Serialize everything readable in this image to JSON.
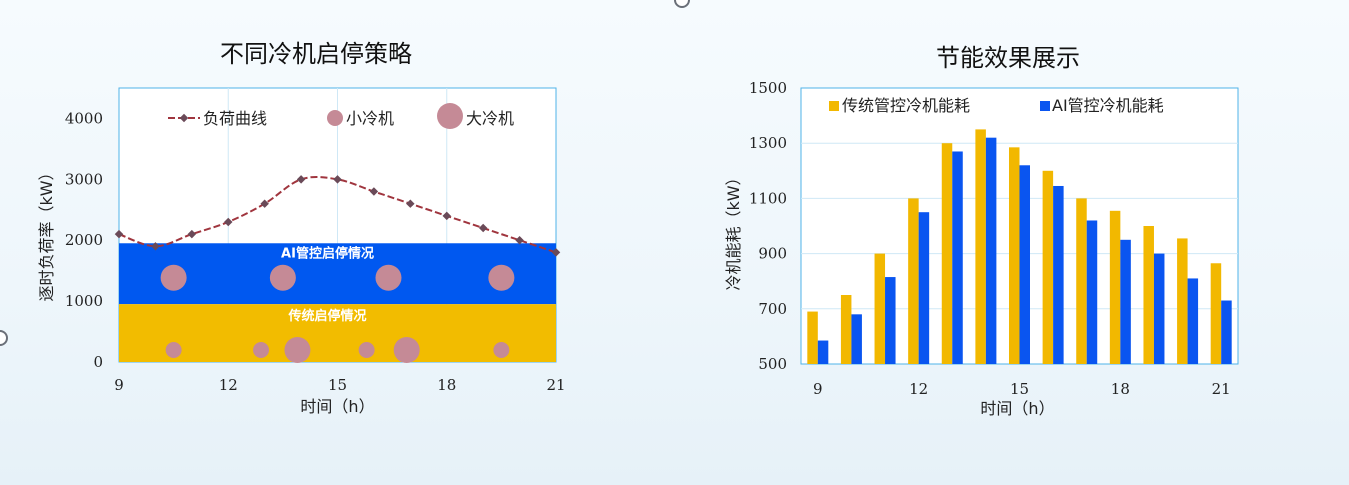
{
  "left_chart": {
    "title": "不同冷机启停策略",
    "xlabel": "时间（h）",
    "ylabel": "逐时负荷率（kW）",
    "legend": [
      "负荷曲线",
      "小冷机",
      "大冷机"
    ],
    "band_ai_label": "AI管控启停情况",
    "band_trad_label": "传统启停情况",
    "colors": {
      "load_line": "#a0353e",
      "marker": "#6a4a58",
      "chiller": "#c58a96",
      "ai_band": "#0058f0",
      "trad_band": "#f2bc00",
      "axis": "#4fb3e8"
    }
  },
  "right_chart": {
    "title": "节能效果展示",
    "xlabel": "时间（h）",
    "ylabel": "冷机能耗（kW）",
    "colors": {
      "traditional": "#f2b800",
      "ai": "#0a55f0",
      "axis": "#4fb3e8"
    }
  },
  "chart_data": [
    {
      "type": "line",
      "title": "不同冷机启停策略",
      "xlabel": "时间（h）",
      "ylabel": "逐时负荷率（kW）",
      "xlim": [
        9,
        21
      ],
      "ylim": [
        0,
        4500
      ],
      "xticks": [
        9,
        12,
        15,
        18,
        21
      ],
      "yticks": [
        0,
        1000,
        2000,
        3000,
        4000
      ],
      "legend_position": "top",
      "series": [
        {
          "name": "负荷曲线",
          "x": [
            9,
            10,
            11,
            12,
            13,
            14,
            15,
            16,
            17,
            18,
            19,
            20,
            21
          ],
          "y": [
            2100,
            1900,
            2100,
            2300,
            2600,
            3000,
            3000,
            2800,
            2600,
            2400,
            2200,
            2000,
            1800
          ]
        }
      ],
      "bands": [
        {
          "label": "AI管控启停情况",
          "y_range": [
            950,
            1950
          ],
          "chillers": [
            {
              "type": "大冷机",
              "x": 10.5
            },
            {
              "type": "大冷机",
              "x": 13.5
            },
            {
              "type": "大冷机",
              "x": 16.4
            },
            {
              "type": "大冷机",
              "x": 19.5
            }
          ]
        },
        {
          "label": "传统启停情况",
          "y_range": [
            0,
            950
          ],
          "chillers": [
            {
              "type": "小冷机",
              "x": 10.5
            },
            {
              "type": "小冷机",
              "x": 12.9
            },
            {
              "type": "大冷机",
              "x": 13.9
            },
            {
              "type": "小冷机",
              "x": 15.8
            },
            {
              "type": "大冷机",
              "x": 16.9
            },
            {
              "type": "小冷机",
              "x": 19.5
            }
          ]
        }
      ]
    },
    {
      "type": "bar",
      "title": "节能效果展示",
      "xlabel": "时间（h）",
      "ylabel": "冷机能耗（kW）",
      "categories": [
        9,
        10,
        11,
        12,
        13,
        14,
        15,
        16,
        17,
        18,
        19,
        20,
        21
      ],
      "xtick_labels": [
        "9",
        "",
        "",
        "12",
        "",
        "",
        "15",
        "",
        "",
        "18",
        "",
        "",
        "21"
      ],
      "ylim": [
        500,
        1500
      ],
      "yticks": [
        500,
        700,
        900,
        1100,
        1300,
        1500
      ],
      "legend_position": "top",
      "series": [
        {
          "name": "传统管控冷机能耗",
          "values": [
            690,
            750,
            900,
            1100,
            1300,
            1350,
            1285,
            1200,
            1100,
            1055,
            1000,
            955,
            865
          ]
        },
        {
          "name": "AI管控冷机能耗",
          "values": [
            585,
            680,
            815,
            1050,
            1270,
            1320,
            1220,
            1145,
            1020,
            950,
            900,
            810,
            730
          ]
        }
      ]
    }
  ]
}
